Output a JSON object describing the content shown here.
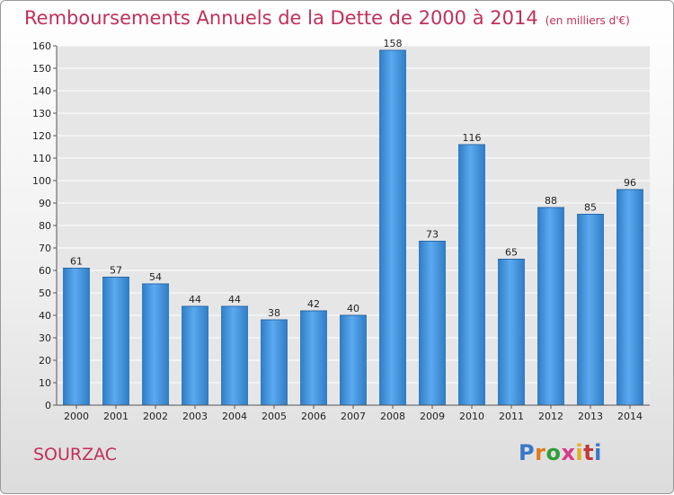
{
  "chart_data": {
    "type": "bar",
    "title": "Remboursements Annuels de la Dette de 2000 à 2014",
    "subtitle": "(en milliers d'€)",
    "categories": [
      "2000",
      "2001",
      "2002",
      "2003",
      "2004",
      "2005",
      "2006",
      "2007",
      "2008",
      "2009",
      "2010",
      "2011",
      "2012",
      "2013",
      "2014"
    ],
    "values": [
      61,
      57,
      54,
      44,
      44,
      38,
      42,
      40,
      158,
      73,
      116,
      65,
      88,
      85,
      96
    ],
    "ylim": [
      0,
      160
    ],
    "yticks": [
      0,
      10,
      20,
      30,
      40,
      50,
      60,
      70,
      80,
      90,
      100,
      110,
      120,
      130,
      140,
      150,
      160
    ],
    "grid": true,
    "bar_color": "#3a8fd6"
  },
  "footer": {
    "location": "SOURZAC",
    "logo": "Proxiti",
    "logo_colors": [
      "#3a78c8",
      "#e07a1a",
      "#2f9e3a",
      "#d93a8a",
      "#e0b020",
      "#c03a3a",
      "#3a78c8"
    ]
  }
}
